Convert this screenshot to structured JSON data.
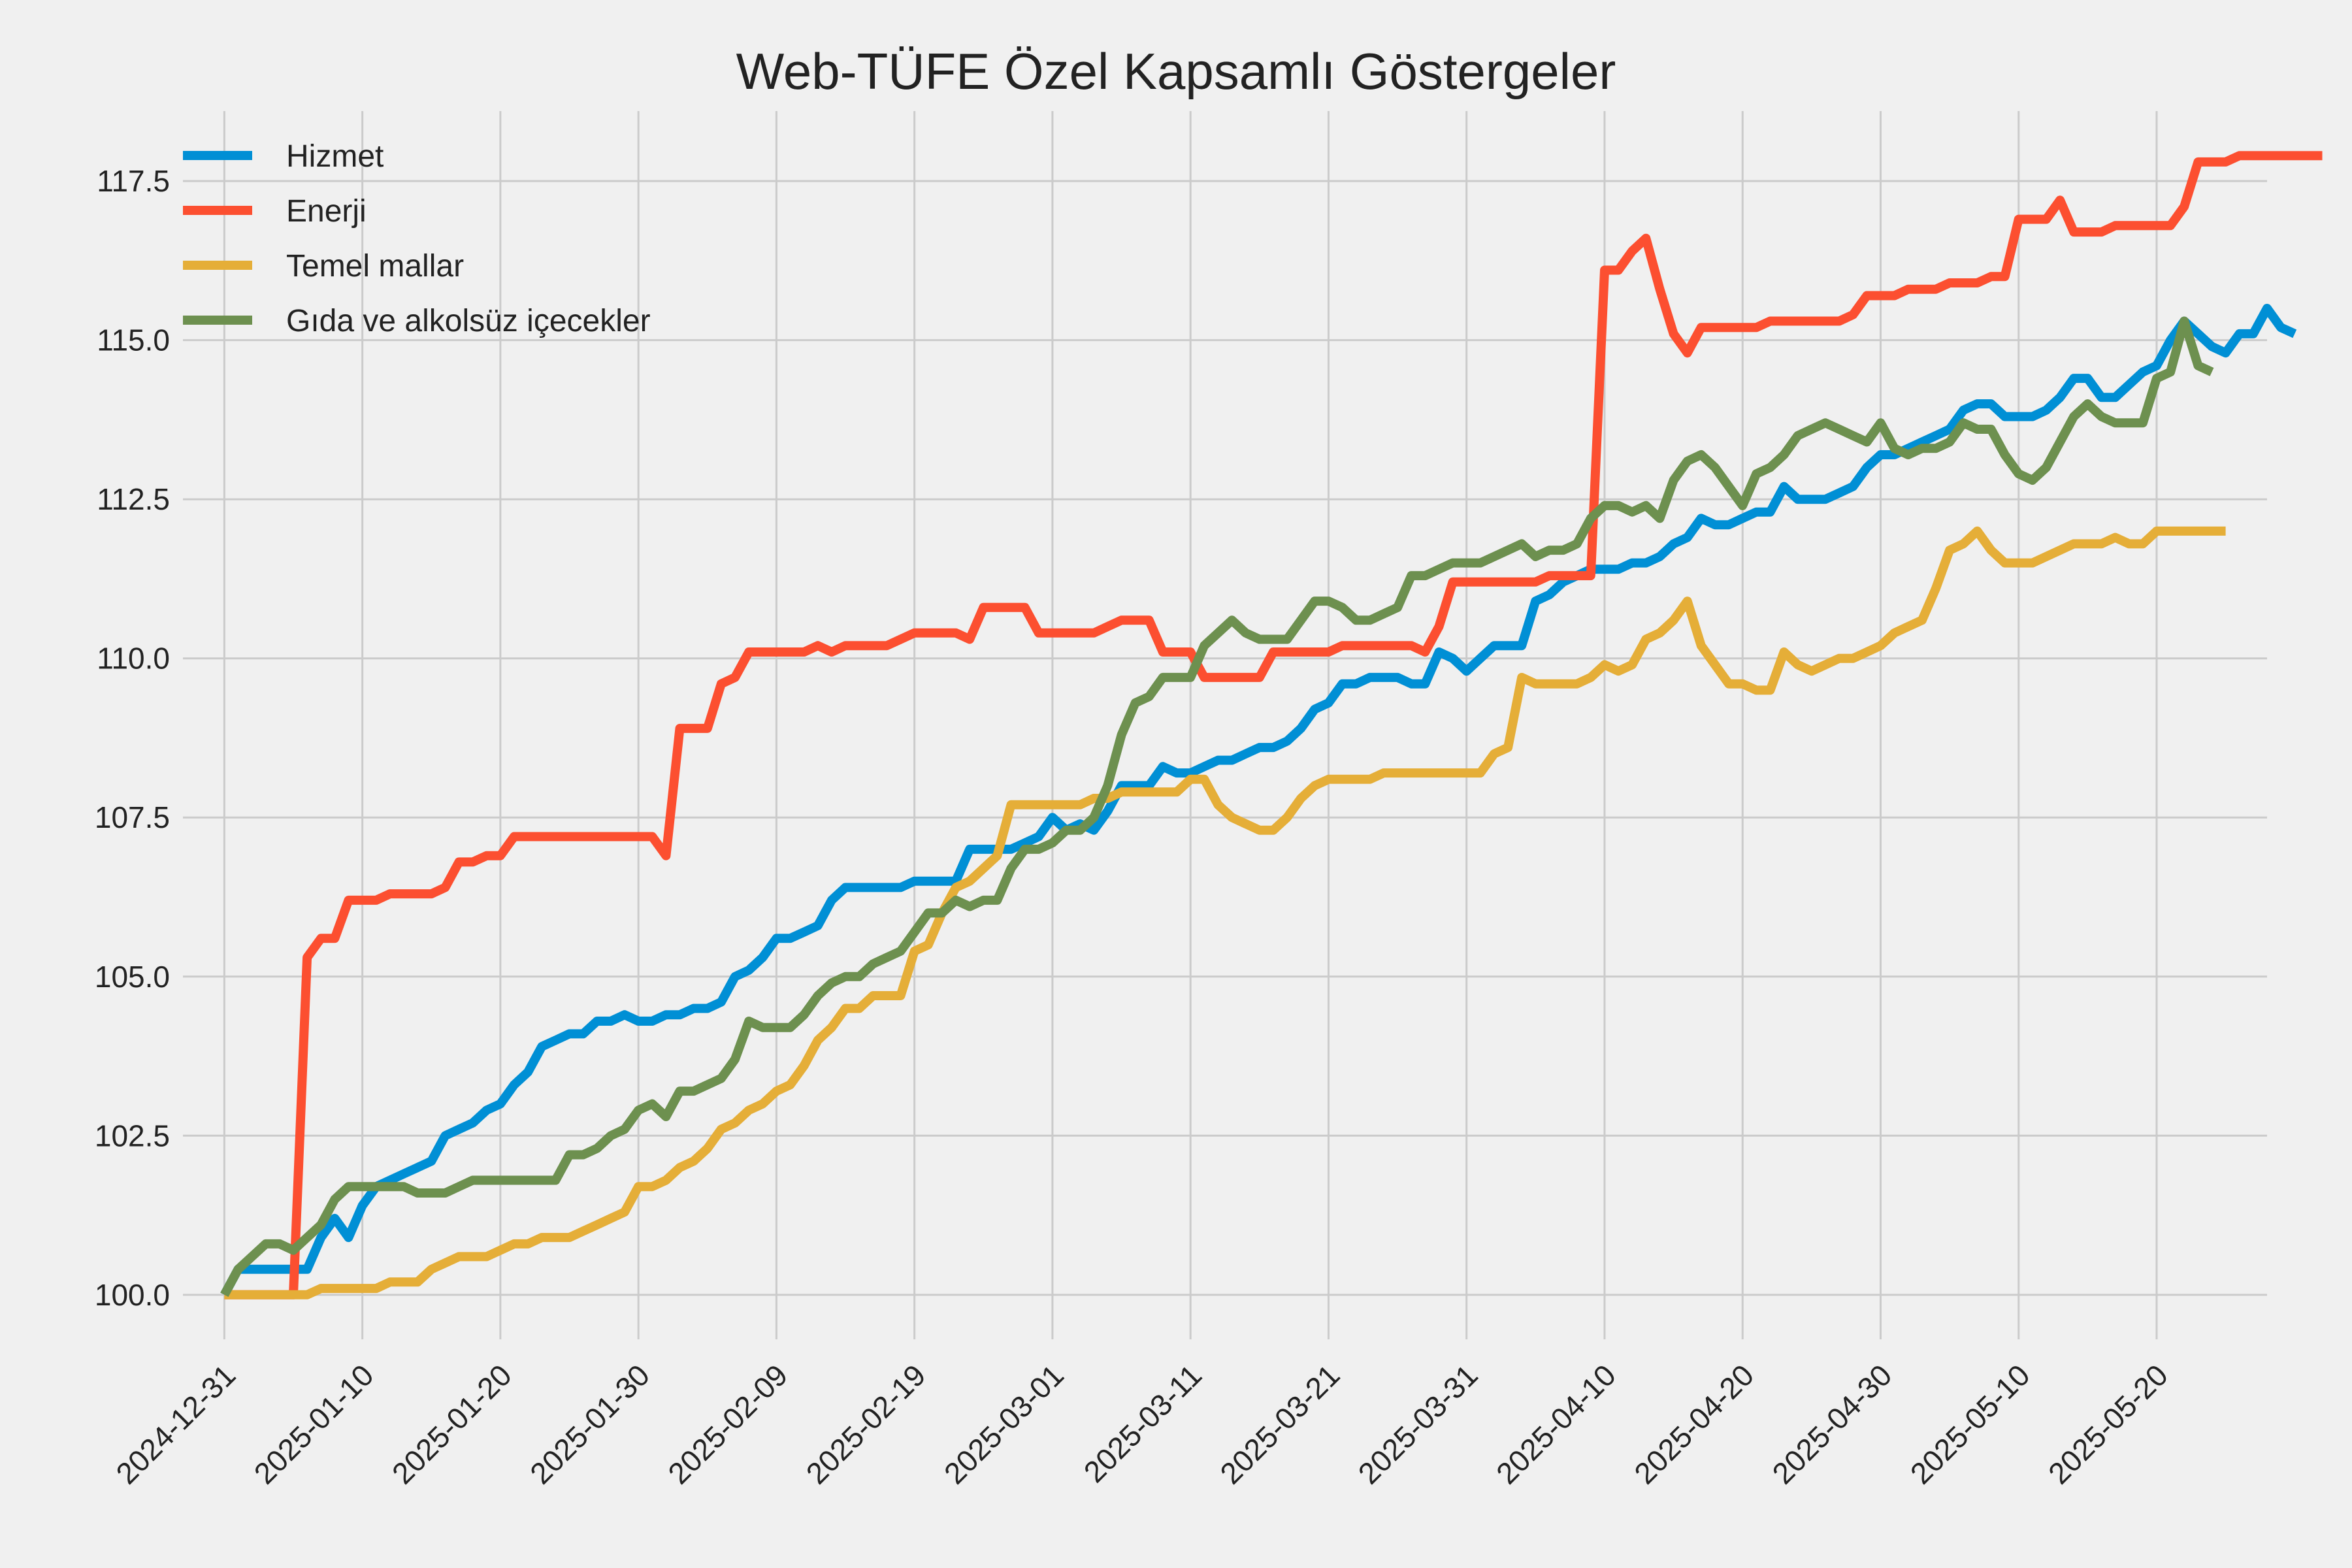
{
  "chart_data": {
    "type": "line",
    "title": "Web-TÜFE Özel Kapsamlı Göstergeler",
    "xlabel": "",
    "ylabel": "",
    "x_start": "2024-12-31",
    "x_end": "2025-05-24",
    "xlim": [
      "2024-12-28",
      "2025-05-28"
    ],
    "ylim": [
      99.3,
      118.6
    ],
    "x_ticks": [
      "2024-12-31",
      "2025-01-10",
      "2025-01-20",
      "2025-01-30",
      "2025-02-09",
      "2025-02-19",
      "2025-03-01",
      "2025-03-11",
      "2025-03-21",
      "2025-03-31",
      "2025-04-10",
      "2025-04-20",
      "2025-04-30",
      "2025-05-10",
      "2025-05-20"
    ],
    "y_ticks": [
      "100.0",
      "102.5",
      "105.0",
      "107.5",
      "110.0",
      "112.5",
      "115.0",
      "117.5"
    ],
    "grid": true,
    "legend_position": "top-left",
    "series": [
      {
        "name": "Hizmet",
        "color": "#008fd5",
        "values": [
          100.0,
          100.4,
          100.4,
          100.4,
          100.4,
          100.4,
          100.4,
          100.9,
          101.2,
          100.9,
          101.4,
          101.7,
          101.8,
          101.9,
          102.0,
          102.1,
          102.5,
          102.6,
          102.7,
          102.9,
          103.0,
          103.3,
          103.5,
          103.9,
          104.0,
          104.1,
          104.1,
          104.3,
          104.3,
          104.4,
          104.3,
          104.3,
          104.4,
          104.4,
          104.5,
          104.5,
          104.6,
          105.0,
          105.1,
          105.3,
          105.6,
          105.6,
          105.7,
          105.8,
          106.2,
          106.4,
          106.4,
          106.4,
          106.4,
          106.4,
          106.5,
          106.5,
          106.5,
          106.5,
          107.0,
          107.0,
          107.0,
          107.0,
          107.1,
          107.2,
          107.5,
          107.3,
          107.4,
          107.3,
          107.6,
          108.0,
          108.0,
          108.0,
          108.3,
          108.2,
          108.2,
          108.3,
          108.4,
          108.4,
          108.5,
          108.6,
          108.6,
          108.7,
          108.9,
          109.2,
          109.3,
          109.6,
          109.6,
          109.7,
          109.7,
          109.7,
          109.6,
          109.6,
          110.1,
          110.0,
          109.8,
          110.0,
          110.2,
          110.2,
          110.2,
          110.9,
          111.0,
          111.2,
          111.3,
          111.4,
          111.4,
          111.4,
          111.5,
          111.5,
          111.6,
          111.8,
          111.9,
          112.2,
          112.1,
          112.1,
          112.2,
          112.3,
          112.3,
          112.7,
          112.5,
          112.5,
          112.5,
          112.6,
          112.7,
          113.0,
          113.2,
          113.2,
          113.3,
          113.4,
          113.5,
          113.6,
          113.9,
          114.0,
          114.0,
          113.8,
          113.8,
          113.8,
          113.9,
          114.1,
          114.4,
          114.4,
          114.1,
          114.1,
          114.3,
          114.5,
          114.6,
          115.0,
          115.3,
          115.1,
          114.9,
          114.8,
          115.1,
          115.1,
          115.5,
          115.2,
          115.1
        ]
      },
      {
        "name": "Enerji",
        "color": "#fc4f30",
        "values": [
          100.0,
          100.0,
          100.0,
          100.0,
          100.0,
          100.0,
          105.3,
          105.6,
          105.6,
          106.2,
          106.2,
          106.2,
          106.3,
          106.3,
          106.3,
          106.3,
          106.4,
          106.8,
          106.8,
          106.9,
          106.9,
          107.2,
          107.2,
          107.2,
          107.2,
          107.2,
          107.2,
          107.2,
          107.2,
          107.2,
          107.2,
          107.2,
          106.9,
          108.9,
          108.9,
          108.9,
          109.6,
          109.7,
          110.1,
          110.1,
          110.1,
          110.1,
          110.1,
          110.2,
          110.1,
          110.2,
          110.2,
          110.2,
          110.2,
          110.3,
          110.4,
          110.4,
          110.4,
          110.4,
          110.3,
          110.8,
          110.8,
          110.8,
          110.8,
          110.4,
          110.4,
          110.4,
          110.4,
          110.4,
          110.5,
          110.6,
          110.6,
          110.6,
          110.1,
          110.1,
          110.1,
          109.7,
          109.7,
          109.7,
          109.7,
          109.7,
          110.1,
          110.1,
          110.1,
          110.1,
          110.1,
          110.2,
          110.2,
          110.2,
          110.2,
          110.2,
          110.2,
          110.1,
          110.5,
          111.2,
          111.2,
          111.2,
          111.2,
          111.2,
          111.2,
          111.2,
          111.3,
          111.3,
          111.3,
          111.3,
          116.1,
          116.1,
          116.4,
          116.6,
          115.8,
          115.1,
          114.8,
          115.2,
          115.2,
          115.2,
          115.2,
          115.2,
          115.3,
          115.3,
          115.3,
          115.3,
          115.3,
          115.3,
          115.4,
          115.7,
          115.7,
          115.7,
          115.8,
          115.8,
          115.8,
          115.9,
          115.9,
          115.9,
          116.0,
          116.0,
          116.9,
          116.9,
          116.9,
          117.2,
          116.7,
          116.7,
          116.7,
          116.8,
          116.8,
          116.8,
          116.8,
          116.8,
          117.1,
          117.8,
          117.8,
          117.8,
          117.9,
          117.9,
          117.9,
          117.9,
          117.9,
          117.9,
          117.9
        ]
      },
      {
        "name": "Temel mallar",
        "color": "#e5ae38",
        "values": [
          100.0,
          100.0,
          100.0,
          100.0,
          100.0,
          100.0,
          100.0,
          100.1,
          100.1,
          100.1,
          100.1,
          100.1,
          100.2,
          100.2,
          100.2,
          100.4,
          100.5,
          100.6,
          100.6,
          100.6,
          100.7,
          100.8,
          100.8,
          100.9,
          100.9,
          100.9,
          101.0,
          101.1,
          101.2,
          101.3,
          101.7,
          101.7,
          101.8,
          102.0,
          102.1,
          102.3,
          102.6,
          102.7,
          102.9,
          103.0,
          103.2,
          103.3,
          103.6,
          104.0,
          104.2,
          104.5,
          104.5,
          104.7,
          104.7,
          104.7,
          105.4,
          105.5,
          106.0,
          106.4,
          106.5,
          106.7,
          106.9,
          107.7,
          107.7,
          107.7,
          107.7,
          107.7,
          107.7,
          107.8,
          107.8,
          107.9,
          107.9,
          107.9,
          107.9,
          107.9,
          108.1,
          108.1,
          107.7,
          107.5,
          107.4,
          107.3,
          107.3,
          107.5,
          107.8,
          108.0,
          108.1,
          108.1,
          108.1,
          108.1,
          108.2,
          108.2,
          108.2,
          108.2,
          108.2,
          108.2,
          108.2,
          108.2,
          108.5,
          108.6,
          109.7,
          109.6,
          109.6,
          109.6,
          109.6,
          109.7,
          109.9,
          109.8,
          109.9,
          110.3,
          110.4,
          110.6,
          110.9,
          110.2,
          109.9,
          109.6,
          109.6,
          109.5,
          109.5,
          110.1,
          109.9,
          109.8,
          109.9,
          110.0,
          110.0,
          110.1,
          110.2,
          110.4,
          110.5,
          110.6,
          111.1,
          111.7,
          111.8,
          112.0,
          111.7,
          111.5,
          111.5,
          111.5,
          111.6,
          111.7,
          111.8,
          111.8,
          111.8,
          111.9,
          111.8,
          111.8,
          112.0,
          112.0,
          112.0,
          112.0,
          112.0,
          112.0
        ]
      },
      {
        "name": "Gıda ve alkolsüz içecekler",
        "color": "#6d904f",
        "values": [
          100.0,
          100.4,
          100.6,
          100.8,
          100.8,
          100.7,
          100.9,
          101.1,
          101.5,
          101.7,
          101.7,
          101.7,
          101.7,
          101.7,
          101.6,
          101.6,
          101.6,
          101.7,
          101.8,
          101.8,
          101.8,
          101.8,
          101.8,
          101.8,
          101.8,
          102.2,
          102.2,
          102.3,
          102.5,
          102.6,
          102.9,
          103.0,
          102.8,
          103.2,
          103.2,
          103.3,
          103.4,
          103.7,
          104.3,
          104.2,
          104.2,
          104.2,
          104.4,
          104.7,
          104.9,
          105.0,
          105.0,
          105.2,
          105.3,
          105.4,
          105.7,
          106.0,
          106.0,
          106.2,
          106.1,
          106.2,
          106.2,
          106.7,
          107.0,
          107.0,
          107.1,
          107.3,
          107.3,
          107.5,
          108.0,
          108.8,
          109.3,
          109.4,
          109.7,
          109.7,
          109.7,
          110.2,
          110.4,
          110.6,
          110.4,
          110.3,
          110.3,
          110.3,
          110.6,
          110.9,
          110.9,
          110.8,
          110.6,
          110.6,
          110.7,
          110.8,
          111.3,
          111.3,
          111.4,
          111.5,
          111.5,
          111.5,
          111.6,
          111.7,
          111.8,
          111.6,
          111.7,
          111.7,
          111.8,
          112.2,
          112.4,
          112.4,
          112.3,
          112.4,
          112.2,
          112.8,
          113.1,
          113.2,
          113.0,
          112.7,
          112.4,
          112.9,
          113.0,
          113.2,
          113.5,
          113.6,
          113.7,
          113.6,
          113.5,
          113.4,
          113.7,
          113.3,
          113.2,
          113.3,
          113.3,
          113.4,
          113.7,
          113.6,
          113.6,
          113.2,
          112.9,
          112.8,
          113.0,
          113.4,
          113.8,
          114.0,
          113.8,
          113.7,
          113.7,
          113.7,
          114.4,
          114.5,
          115.3,
          114.6,
          114.5
        ]
      }
    ]
  }
}
